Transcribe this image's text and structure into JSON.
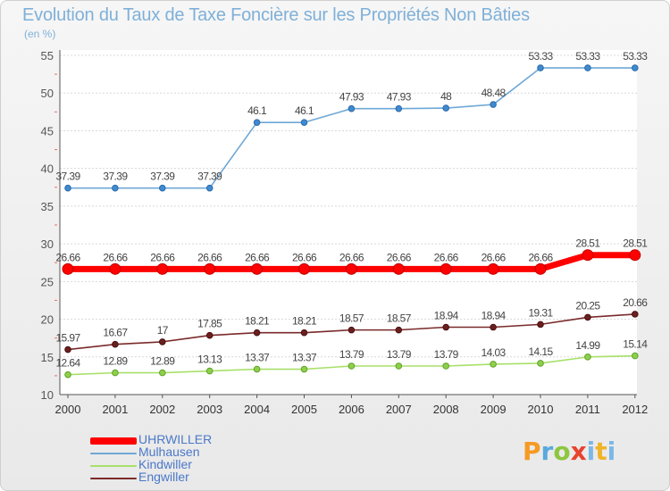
{
  "title": "Evolution du Taux de Taxe Foncière sur les Propriétés Non Bâties",
  "unit": "(en %)",
  "brand": {
    "p": "P",
    "r": "r",
    "o": "o",
    "x": "x",
    "i": "i",
    "t": "t",
    "i2": "i"
  },
  "colors": {
    "UHRWILLER": "#ff0000",
    "Mulhausen": "#6fa8d6",
    "Kindwiller": "#a8e06a",
    "Engwiller": "#7a2a2a",
    "axis": "#555555",
    "grid": "#d8d8d8",
    "title": "#7fb0d8"
  },
  "chart_data": {
    "type": "line",
    "title": "Evolution du Taux de Taxe Foncière sur les Propriétés Non Bâties",
    "ylabel": "(en %)",
    "xlabel": "",
    "ylim": [
      10,
      55
    ],
    "yticks": [
      10,
      15,
      20,
      25,
      30,
      35,
      40,
      45,
      50,
      55
    ],
    "grid": true,
    "legend_position": "bottom-left",
    "x": [
      "2000",
      "2001",
      "2002",
      "2003",
      "2004",
      "2005",
      "2006",
      "2007",
      "2008",
      "2009",
      "2010",
      "2011",
      "2012"
    ],
    "series": [
      {
        "name": "UHRWILLER",
        "values": [
          26.66,
          26.66,
          26.66,
          26.66,
          26.66,
          26.66,
          26.66,
          26.66,
          26.66,
          26.66,
          26.66,
          28.51,
          28.51
        ],
        "labels": [
          "26.66",
          "26.66",
          "26.66",
          "26.66",
          "26.66",
          "26.66",
          "26.66",
          "26.66",
          "26.66",
          "26.66",
          "26.66",
          "28.51",
          "28.51"
        ]
      },
      {
        "name": "Mulhausen",
        "values": [
          37.39,
          37.39,
          37.39,
          37.39,
          46.1,
          46.1,
          47.93,
          47.93,
          48,
          48.48,
          53.33,
          53.33,
          53.33
        ],
        "labels": [
          "37.39",
          "37.39",
          "37.39",
          "37.39",
          "46.1",
          "46.1",
          "47.93",
          "47.93",
          "48",
          "48.48",
          "53.33",
          "53.33",
          "53.33"
        ]
      },
      {
        "name": "Kindwiller",
        "values": [
          12.64,
          12.89,
          12.89,
          13.13,
          13.37,
          13.37,
          13.79,
          13.79,
          13.79,
          14.03,
          14.15,
          14.99,
          15.14
        ],
        "labels": [
          "12.64",
          "12.89",
          "12.89",
          "13.13",
          "13.37",
          "13.37",
          "13.79",
          "13.79",
          "13.79",
          "14.03",
          "14.15",
          "14.99",
          "15.14"
        ]
      },
      {
        "name": "Engwiller",
        "values": [
          15.97,
          16.67,
          17,
          17.85,
          18.21,
          18.21,
          18.57,
          18.57,
          18.94,
          18.94,
          19.31,
          20.25,
          20.66
        ],
        "labels": [
          "15.97",
          "16.67",
          "17",
          "17.85",
          "18.21",
          "18.21",
          "18.57",
          "18.57",
          "18.94",
          "18.94",
          "19.31",
          "20.25",
          "20.66"
        ]
      }
    ]
  }
}
